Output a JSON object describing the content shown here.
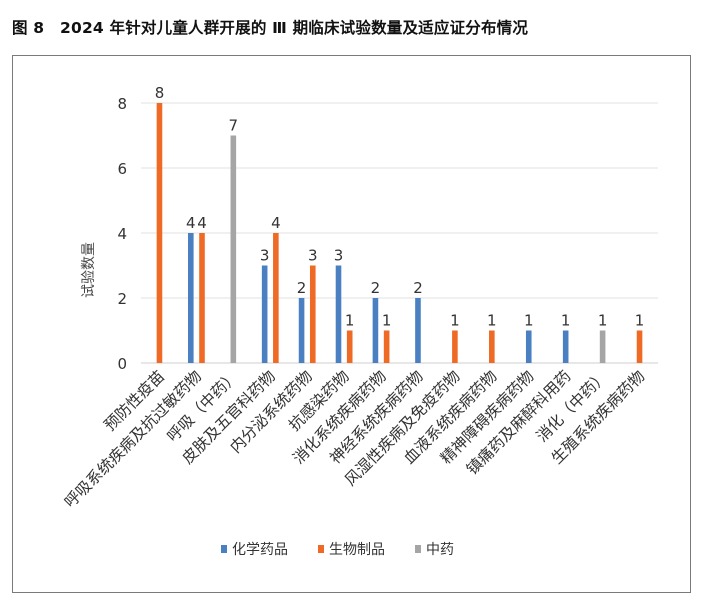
{
  "figure": {
    "title": "图 8　2024 年针对儿童人群开展的 Ⅲ 期临床试验数量及适应证分布情况"
  },
  "chart_data": {
    "type": "bar",
    "title": "",
    "xlabel": "",
    "ylabel": "试验数量",
    "ylim": [
      0,
      8
    ],
    "yticks": [
      0,
      2,
      4,
      6,
      8
    ],
    "grid": true,
    "legend_position": "bottom",
    "categories": [
      "预防性疫苗",
      "呼吸系统疾病及抗过敏药物",
      "呼吸（中药）",
      "皮肤及五官科药物",
      "内分泌系统药物",
      "抗感染药物",
      "消化系统疾病药物",
      "神经系统疾病药物",
      "风湿性疾病及免疫药物",
      "血液系统疾病药物",
      "精神障碍疾病药物",
      "镇痛药及麻醉科用药",
      "消化（中药）",
      "生殖系统疾病药物"
    ],
    "series": [
      {
        "name": "化学药品",
        "color": "#4a7fc1",
        "values": [
          null,
          4,
          null,
          3,
          2,
          3,
          2,
          2,
          null,
          null,
          1,
          1,
          null,
          null
        ]
      },
      {
        "name": "生物制品",
        "color": "#ee6a25",
        "values": [
          8,
          4,
          null,
          4,
          3,
          1,
          1,
          null,
          1,
          1,
          null,
          null,
          null,
          1
        ]
      },
      {
        "name": "中药",
        "color": "#a5a5a5",
        "values": [
          null,
          null,
          7,
          null,
          null,
          null,
          null,
          null,
          null,
          null,
          null,
          null,
          1,
          null
        ]
      }
    ]
  }
}
